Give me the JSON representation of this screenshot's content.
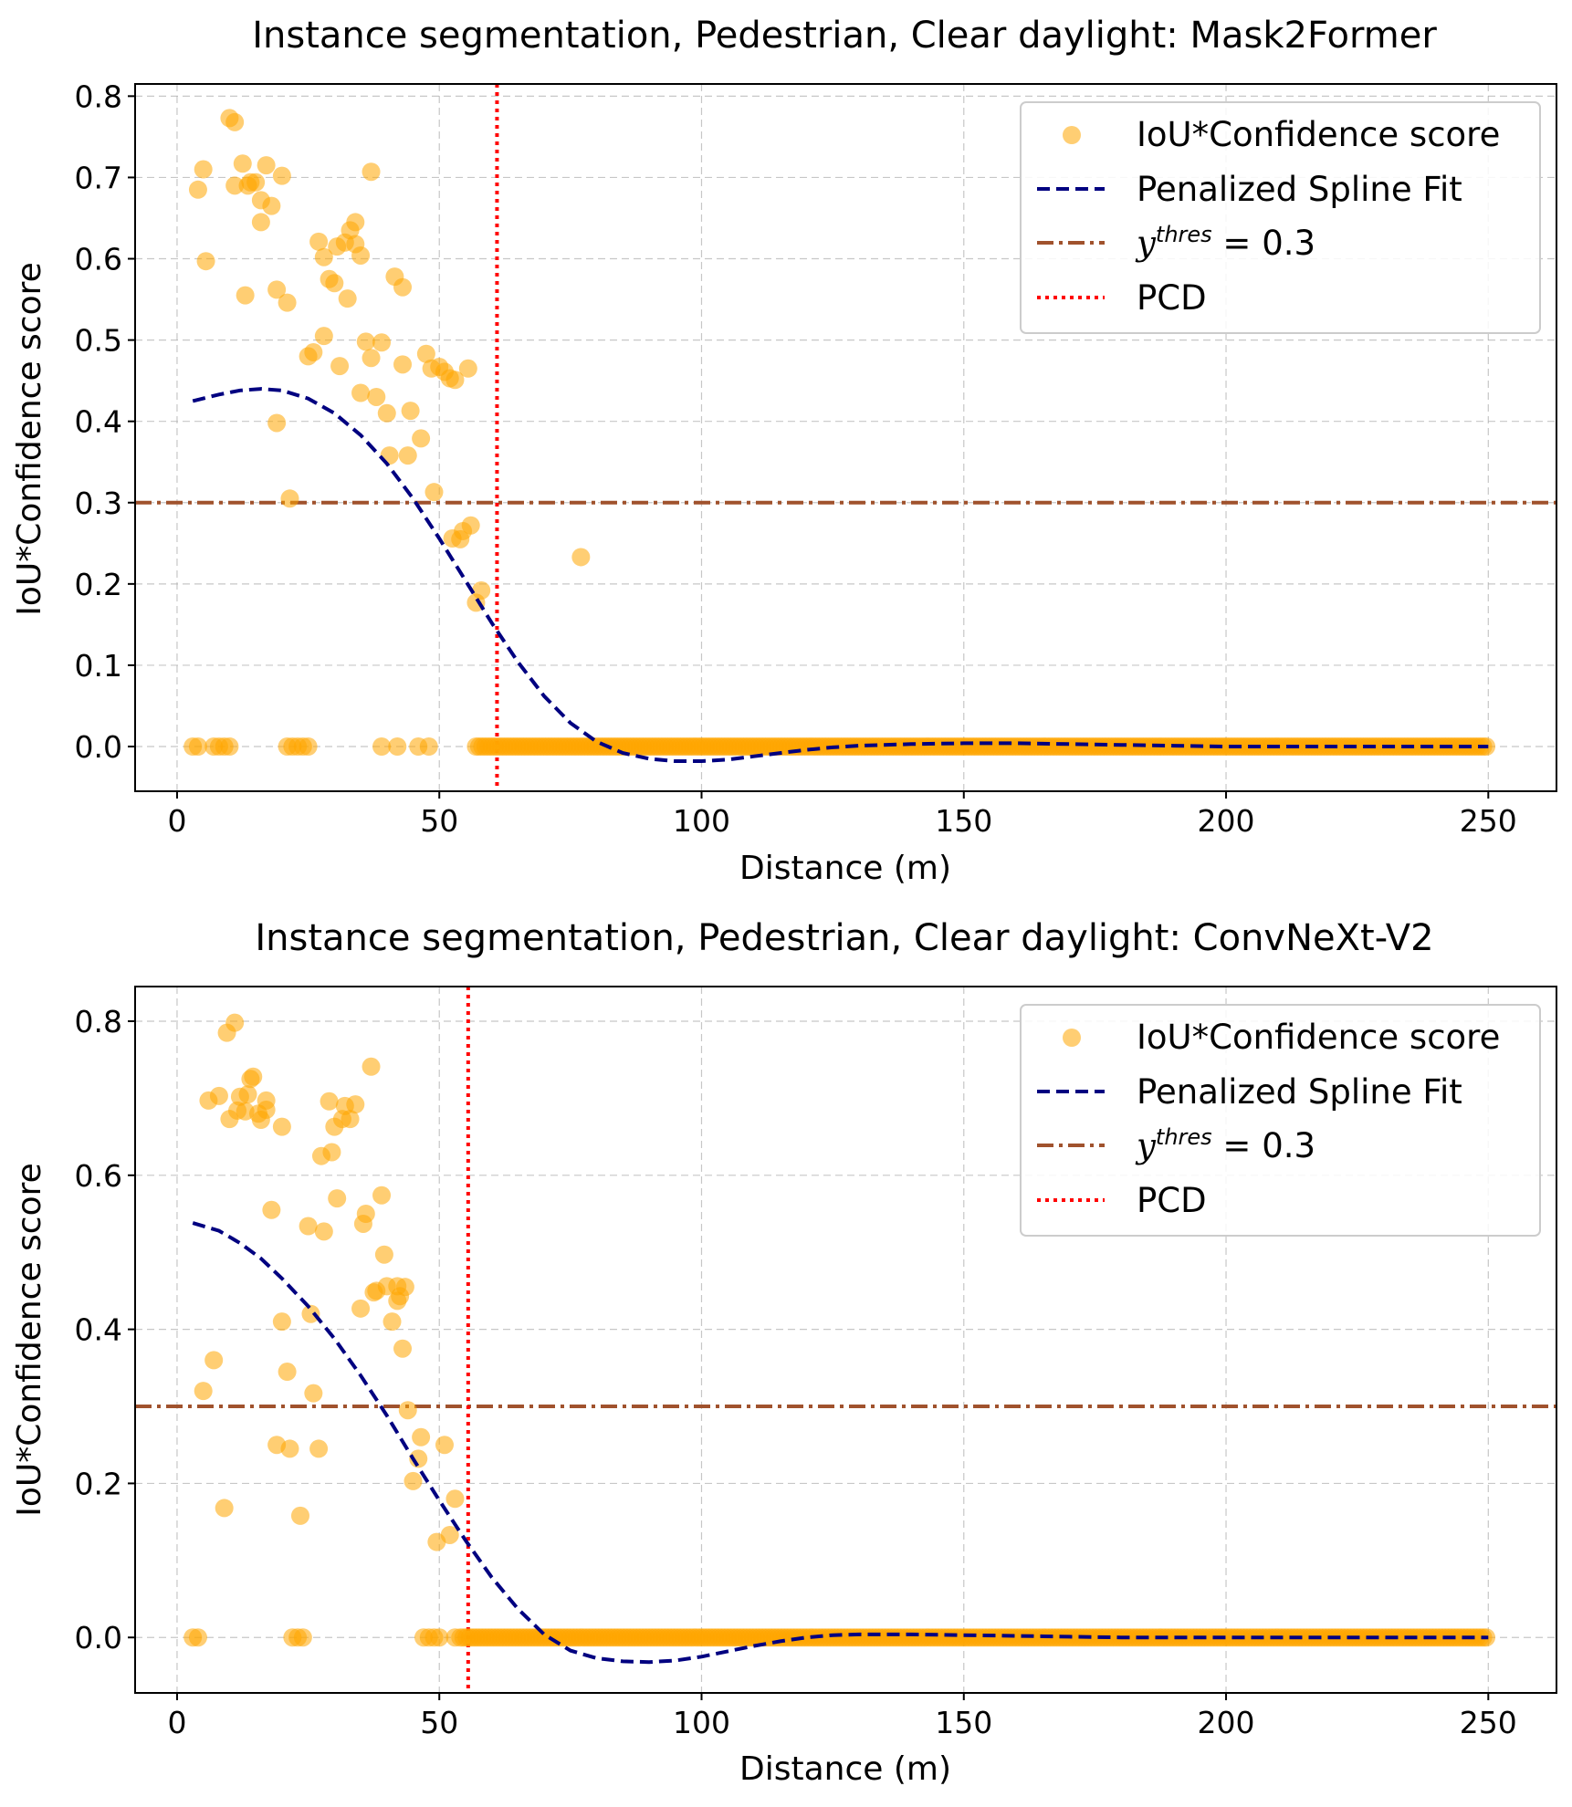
{
  "chart_data": [
    {
      "type": "scatter",
      "title": "Instance segmentation, Pedestrian, Clear daylight: Mask2Former",
      "xlabel": "Distance (m)",
      "ylabel": "IoU*Confidence score",
      "xlim": [
        -8,
        263
      ],
      "ylim": [
        -0.055,
        0.815
      ],
      "xticks": [
        0,
        50,
        100,
        150,
        200,
        250
      ],
      "yticks": [
        0.0,
        0.1,
        0.2,
        0.3,
        0.4,
        0.5,
        0.6,
        0.7,
        0.8
      ],
      "xtick_labels": [
        "0",
        "50",
        "100",
        "150",
        "200",
        "250"
      ],
      "ytick_labels": [
        "0.0",
        "0.1",
        "0.2",
        "0.3",
        "0.4",
        "0.5",
        "0.6",
        "0.7",
        "0.8"
      ],
      "grid": true,
      "legend_position": "upper right",
      "legend": {
        "scatter": "IoU*Confidence score",
        "spline": "Penalized Spline Fit",
        "thres_var": "y",
        "thres_sup": "thres",
        "thres_rest": " = 0.3",
        "pcd": "PCD"
      },
      "threshold": 0.3,
      "pcd": 61,
      "points": [
        [
          4,
          0.685
        ],
        [
          5,
          0.71
        ],
        [
          5.5,
          0.597
        ],
        [
          10,
          0.773
        ],
        [
          11,
          0.768
        ],
        [
          11,
          0.69
        ],
        [
          12.5,
          0.717
        ],
        [
          13,
          0.555
        ],
        [
          13.5,
          0.69
        ],
        [
          14,
          0.694
        ],
        [
          15,
          0.694
        ],
        [
          16,
          0.645
        ],
        [
          16,
          0.672
        ],
        [
          17,
          0.715
        ],
        [
          18,
          0.665
        ],
        [
          19,
          0.562
        ],
        [
          19,
          0.398
        ],
        [
          20,
          0.702
        ],
        [
          21,
          0.546
        ],
        [
          21.5,
          0.305
        ],
        [
          25,
          0.48
        ],
        [
          26,
          0.485
        ],
        [
          27,
          0.621
        ],
        [
          28,
          0.602
        ],
        [
          28,
          0.505
        ],
        [
          29,
          0.575
        ],
        [
          30,
          0.57
        ],
        [
          30.5,
          0.615
        ],
        [
          31,
          0.468
        ],
        [
          32,
          0.62
        ],
        [
          32.5,
          0.551
        ],
        [
          33,
          0.635
        ],
        [
          34,
          0.645
        ],
        [
          34,
          0.618
        ],
        [
          35,
          0.604
        ],
        [
          35,
          0.435
        ],
        [
          36,
          0.498
        ],
        [
          37,
          0.707
        ],
        [
          37,
          0.478
        ],
        [
          38,
          0.43
        ],
        [
          39,
          0.497
        ],
        [
          40,
          0.41
        ],
        [
          40.5,
          0.358
        ],
        [
          41.5,
          0.578
        ],
        [
          43,
          0.565
        ],
        [
          43,
          0.47
        ],
        [
          44,
          0.358
        ],
        [
          44.5,
          0.413
        ],
        [
          46.5,
          0.379
        ],
        [
          47.5,
          0.483
        ],
        [
          48.5,
          0.465
        ],
        [
          49,
          0.313
        ],
        [
          50,
          0.467
        ],
        [
          51,
          0.461
        ],
        [
          52,
          0.453
        ],
        [
          52.5,
          0.256
        ],
        [
          53,
          0.451
        ],
        [
          54,
          0.255
        ],
        [
          54.5,
          0.265
        ],
        [
          55.5,
          0.465
        ],
        [
          56,
          0.272
        ],
        [
          57,
          0.177
        ],
        [
          58,
          0.192
        ],
        [
          77,
          0.233
        ],
        [
          3,
          0
        ],
        [
          4,
          0
        ],
        [
          7,
          0
        ],
        [
          8,
          0
        ],
        [
          9,
          0
        ],
        [
          10,
          0
        ],
        [
          21,
          0
        ],
        [
          22,
          0
        ],
        [
          23,
          0
        ],
        [
          24,
          0
        ],
        [
          25,
          0
        ],
        [
          39,
          0
        ],
        [
          42,
          0
        ],
        [
          46,
          0
        ],
        [
          48,
          0
        ]
      ],
      "zero_band": [
        57,
        250,
        0
      ],
      "spline": [
        [
          3,
          0.425
        ],
        [
          8,
          0.433
        ],
        [
          12,
          0.438
        ],
        [
          16,
          0.44
        ],
        [
          20,
          0.438
        ],
        [
          25,
          0.428
        ],
        [
          30,
          0.41
        ],
        [
          35,
          0.383
        ],
        [
          40,
          0.348
        ],
        [
          45,
          0.305
        ],
        [
          50,
          0.256
        ],
        [
          55,
          0.204
        ],
        [
          60,
          0.152
        ],
        [
          65,
          0.104
        ],
        [
          70,
          0.062
        ],
        [
          75,
          0.029
        ],
        [
          80,
          0.006
        ],
        [
          85,
          -0.008
        ],
        [
          90,
          -0.015
        ],
        [
          95,
          -0.018
        ],
        [
          100,
          -0.018
        ],
        [
          105,
          -0.016
        ],
        [
          110,
          -0.012
        ],
        [
          115,
          -0.008
        ],
        [
          120,
          -0.004
        ],
        [
          125,
          -0.001
        ],
        [
          130,
          0.001
        ],
        [
          140,
          0.003
        ],
        [
          150,
          0.004
        ],
        [
          160,
          0.004
        ],
        [
          170,
          0.003
        ],
        [
          180,
          0.002
        ],
        [
          190,
          0.001
        ],
        [
          200,
          0
        ],
        [
          210,
          0
        ],
        [
          220,
          0
        ],
        [
          230,
          0
        ],
        [
          240,
          0
        ],
        [
          250,
          0
        ]
      ]
    },
    {
      "type": "scatter",
      "title": "Instance segmentation, Pedestrian, Clear daylight: ConvNeXt-V2",
      "xlabel": "Distance (m)",
      "ylabel": "IoU*Confidence score",
      "xlim": [
        -8,
        263
      ],
      "ylim": [
        -0.072,
        0.845
      ],
      "xticks": [
        0,
        50,
        100,
        150,
        200,
        250
      ],
      "yticks": [
        0.0,
        0.2,
        0.4,
        0.6,
        0.8
      ],
      "xtick_labels": [
        "0",
        "50",
        "100",
        "150",
        "200",
        "250"
      ],
      "ytick_labels": [
        "0.0",
        "0.2",
        "0.4",
        "0.6",
        "0.8"
      ],
      "grid": true,
      "legend_position": "upper right",
      "legend": {
        "scatter": "IoU*Confidence score",
        "spline": "Penalized Spline Fit",
        "thres_var": "y",
        "thres_sup": "thres",
        "thres_rest": " = 0.3",
        "pcd": "PCD"
      },
      "threshold": 0.3,
      "pcd": 55.5,
      "points": [
        [
          5,
          0.32
        ],
        [
          6,
          0.697
        ],
        [
          7,
          0.36
        ],
        [
          8,
          0.703
        ],
        [
          9,
          0.168
        ],
        [
          9.5,
          0.785
        ],
        [
          10,
          0.673
        ],
        [
          11,
          0.798
        ],
        [
          11.5,
          0.684
        ],
        [
          12,
          0.702
        ],
        [
          13,
          0.683
        ],
        [
          13.5,
          0.705
        ],
        [
          14,
          0.725
        ],
        [
          14.5,
          0.728
        ],
        [
          15.5,
          0.68
        ],
        [
          16,
          0.672
        ],
        [
          17,
          0.697
        ],
        [
          17,
          0.685
        ],
        [
          18,
          0.555
        ],
        [
          19,
          0.25
        ],
        [
          20,
          0.41
        ],
        [
          20,
          0.663
        ],
        [
          21,
          0.345
        ],
        [
          21.5,
          0.245
        ],
        [
          23.5,
          0.158
        ],
        [
          25,
          0.534
        ],
        [
          25.5,
          0.42
        ],
        [
          26,
          0.317
        ],
        [
          27,
          0.245
        ],
        [
          27.5,
          0.625
        ],
        [
          28,
          0.527
        ],
        [
          29,
          0.696
        ],
        [
          29.5,
          0.63
        ],
        [
          30,
          0.663
        ],
        [
          30.5,
          0.57
        ],
        [
          31.5,
          0.673
        ],
        [
          32,
          0.69
        ],
        [
          33,
          0.673
        ],
        [
          34,
          0.692
        ],
        [
          35,
          0.427
        ],
        [
          35.5,
          0.537
        ],
        [
          36,
          0.55
        ],
        [
          37,
          0.741
        ],
        [
          37.5,
          0.448
        ],
        [
          38,
          0.45
        ],
        [
          39,
          0.574
        ],
        [
          39.5,
          0.497
        ],
        [
          40,
          0.456
        ],
        [
          41,
          0.41
        ],
        [
          42,
          0.456
        ],
        [
          42,
          0.437
        ],
        [
          42.5,
          0.443
        ],
        [
          43,
          0.375
        ],
        [
          43.5,
          0.455
        ],
        [
          44,
          0.295
        ],
        [
          45,
          0.203
        ],
        [
          46,
          0.232
        ],
        [
          46.5,
          0.26
        ],
        [
          49.5,
          0.124
        ],
        [
          51,
          0.25
        ],
        [
          52,
          0.133
        ],
        [
          53,
          0.18
        ],
        [
          3,
          0
        ],
        [
          4,
          0
        ],
        [
          22,
          0
        ],
        [
          23,
          0
        ],
        [
          24,
          0
        ],
        [
          47,
          0
        ],
        [
          48,
          0
        ],
        [
          49,
          0
        ],
        [
          50,
          0
        ],
        [
          53,
          0
        ]
      ],
      "zero_band": [
        54,
        250,
        0
      ],
      "spline": [
        [
          3,
          0.538
        ],
        [
          8,
          0.528
        ],
        [
          12,
          0.512
        ],
        [
          16,
          0.492
        ],
        [
          20,
          0.466
        ],
        [
          25,
          0.43
        ],
        [
          30,
          0.388
        ],
        [
          35,
          0.34
        ],
        [
          40,
          0.288
        ],
        [
          45,
          0.232
        ],
        [
          50,
          0.178
        ],
        [
          55,
          0.126
        ],
        [
          60,
          0.078
        ],
        [
          65,
          0.037
        ],
        [
          70,
          0.004
        ],
        [
          75,
          -0.017
        ],
        [
          80,
          -0.027
        ],
        [
          85,
          -0.031
        ],
        [
          90,
          -0.032
        ],
        [
          95,
          -0.03
        ],
        [
          100,
          -0.025
        ],
        [
          105,
          -0.018
        ],
        [
          110,
          -0.011
        ],
        [
          115,
          -0.005
        ],
        [
          120,
          0
        ],
        [
          125,
          0.003
        ],
        [
          130,
          0.004
        ],
        [
          140,
          0.004
        ],
        [
          150,
          0.003
        ],
        [
          160,
          0.002
        ],
        [
          170,
          0.001
        ],
        [
          180,
          0
        ],
        [
          190,
          0
        ],
        [
          200,
          0
        ],
        [
          210,
          0
        ],
        [
          220,
          0
        ],
        [
          230,
          0
        ],
        [
          240,
          0
        ],
        [
          250,
          0
        ]
      ]
    }
  ],
  "colors": {
    "scatter": "#FFA500",
    "spline": "#000080",
    "threshold": "#A0522D",
    "pcd": "#FF0000"
  }
}
